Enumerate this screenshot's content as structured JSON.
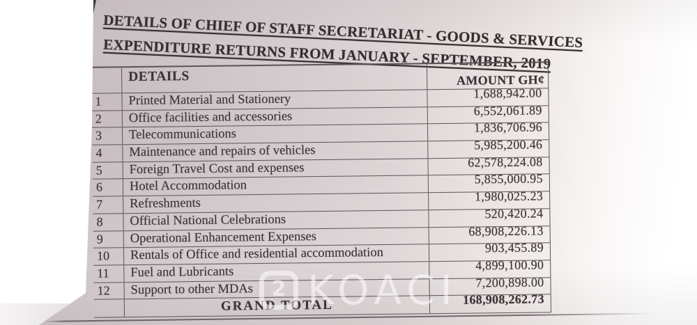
{
  "document": {
    "title_line1": "DETAILS OF CHIEF OF STAFF SECRETARIAT - GOODS & SERVICES",
    "title_line2": "EXPENDITURE RETURNS FROM JANUARY - SEPTEMBER, 2019"
  },
  "table": {
    "columns": {
      "details": "DETAILS",
      "amount": "AMOUNT GH¢"
    },
    "rows": [
      {
        "num": "1",
        "details": "Printed Material and Stationery",
        "amount": "1,688,942.00"
      },
      {
        "num": "2",
        "details": "Office facilities and accessories",
        "amount": "6,552,061.89"
      },
      {
        "num": "3",
        "details": "Telecommunications",
        "amount": "1,836,706.96"
      },
      {
        "num": "4",
        "details": "Maintenance and repairs of vehicles",
        "amount": "5,985,200.46"
      },
      {
        "num": "5",
        "details": "Foreign Travel Cost and expenses",
        "amount": "62,578,224.08"
      },
      {
        "num": "6",
        "details": "Hotel Accommodation",
        "amount": "5,855,000.95"
      },
      {
        "num": "7",
        "details": "Refreshments",
        "amount": "1,980,025.23"
      },
      {
        "num": "8",
        "details": "Official National Celebrations",
        "amount": "520,420.24"
      },
      {
        "num": "9",
        "details": "Operational Enhancement Expenses",
        "amount": "68,908,226.13"
      },
      {
        "num": "10",
        "details": "Rentals of Office and residential accommodation",
        "amount": "903,455.89"
      },
      {
        "num": "11",
        "details": "Fuel and Lubricants",
        "amount": "4,899,100.90"
      },
      {
        "num": "12",
        "details": "Support to other MDAs",
        "amount": "7,200,898.00"
      }
    ],
    "grand_total": {
      "label": "GRAND TOTAL",
      "amount": "168,908,262.73"
    }
  },
  "watermark": {
    "logo_glyph": "2",
    "text": "KOACI",
    "color": "#ffffff"
  },
  "colors": {
    "paper": "#d9d1d3",
    "ink": "#3a3335",
    "border": "#5b5355"
  }
}
